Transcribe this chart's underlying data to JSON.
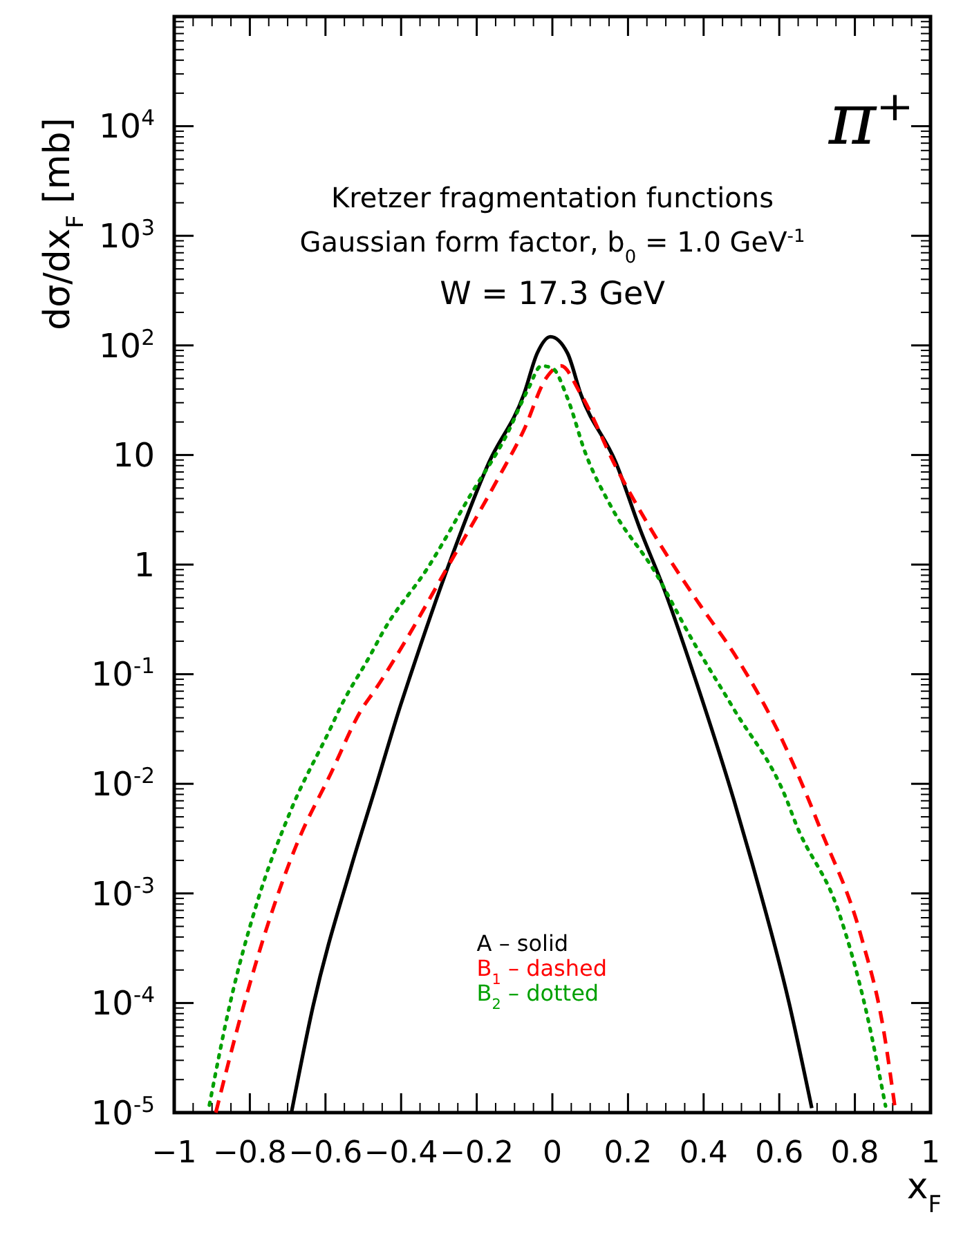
{
  "chart_data": {
    "type": "line",
    "title": "Kretzer fragmentation functions",
    "subtitle": "Gaussian form factor,  b$_{0}$ = 1.0 GeV$^{-1}$",
    "annotations": [
      "W = 17.3 GeV",
      "π⁺"
    ],
    "xlabel": "x$_{F}$",
    "ylabel": "dσ/dx$_{F}$ [mb]",
    "log": "y",
    "legend": "bottom",
    "xlim": [
      -1,
      1
    ],
    "xticks": [
      -1,
      -0.8,
      -0.6,
      -0.4,
      -0.2,
      0,
      0.2,
      0.4,
      0.6,
      0.8,
      1
    ],
    "ylim": [
      1e-05,
      100000
    ],
    "yticks": [
      {
        "value": 1e-05,
        "label": "10$^{-5}$"
      },
      {
        "value": 0.0001,
        "label": "10$^{-4}$"
      },
      {
        "value": 0.001,
        "label": "10$^{-3}$"
      },
      {
        "value": 0.01,
        "label": "10$^{-2}$"
      },
      {
        "value": 0.1,
        "label": "10$^{-1}$"
      },
      1,
      10,
      {
        "value": 100,
        "label": "10$^{2}$"
      },
      {
        "value": 1000,
        "label": "10$^{3}$"
      },
      {
        "value": 10000,
        "label": "10$^{4}$"
      }
    ],
    "series": [
      {
        "name": "A – solid",
        "color": "#000000",
        "line_style": "solid",
        "x": [
          -0.69,
          -0.633,
          -0.533,
          -0.47,
          -0.4,
          -0.377,
          -0.272,
          -0.168,
          -0.075,
          -0.04,
          -0.005,
          0.04,
          0.075,
          0.168,
          0.232,
          0.296,
          0.388,
          0.48,
          0.528,
          0.626,
          0.686
        ],
        "values": [
          1e-05,
          9.3e-05,
          0.0017,
          0.0087,
          0.054,
          0.094,
          1.04,
          8.5,
          36,
          85,
          120,
          85,
          36,
          8.5,
          2.1,
          0.59,
          0.071,
          0.0071,
          0.0019,
          0.0001,
          1.1e-05
        ]
      },
      {
        "name": "B$_{1}$ – dashed",
        "color": "#ff0000",
        "line_style": "dashed",
        "x": [
          -0.89,
          -0.817,
          -0.748,
          -0.678,
          -0.585,
          -0.504,
          -0.47,
          -0.389,
          -0.285,
          -0.146,
          -0.075,
          -0.017,
          0.023,
          0.075,
          0.168,
          0.284,
          0.388,
          0.48,
          0.597,
          0.678,
          0.707,
          0.817,
          0.875,
          0.907
        ],
        "values": [
          1e-05,
          9.3e-05,
          0.00058,
          0.0027,
          0.0126,
          0.048,
          0.071,
          0.2,
          0.85,
          5.9,
          17,
          50,
          65,
          36,
          7.8,
          1.55,
          0.44,
          0.155,
          0.03,
          0.0071,
          0.004,
          0.0004,
          5.9e-05,
          1.05e-05
        ]
      },
      {
        "name": "B$_{2}$ – dotted",
        "color": "#00a000",
        "line_style": "dotted",
        "x": [
          -0.907,
          -0.852,
          -0.783,
          -0.69,
          -0.585,
          -0.563,
          -0.481,
          -0.446,
          -0.33,
          -0.215,
          -0.122,
          -0.064,
          -0.029,
          0,
          0.04,
          0.087,
          0.157,
          0.272,
          0.365,
          0.48,
          0.62,
          0.643,
          0.759,
          0.829,
          0.881
        ],
        "values": [
          1.17e-05,
          0.0001,
          0.00078,
          0.0059,
          0.033,
          0.048,
          0.15,
          0.25,
          0.93,
          4.4,
          15,
          40,
          65,
          62,
          33,
          10.5,
          3.3,
          0.85,
          0.22,
          0.048,
          0.0071,
          0.0044,
          0.00065,
          8.7e-05,
          1.15e-05
        ]
      }
    ]
  }
}
